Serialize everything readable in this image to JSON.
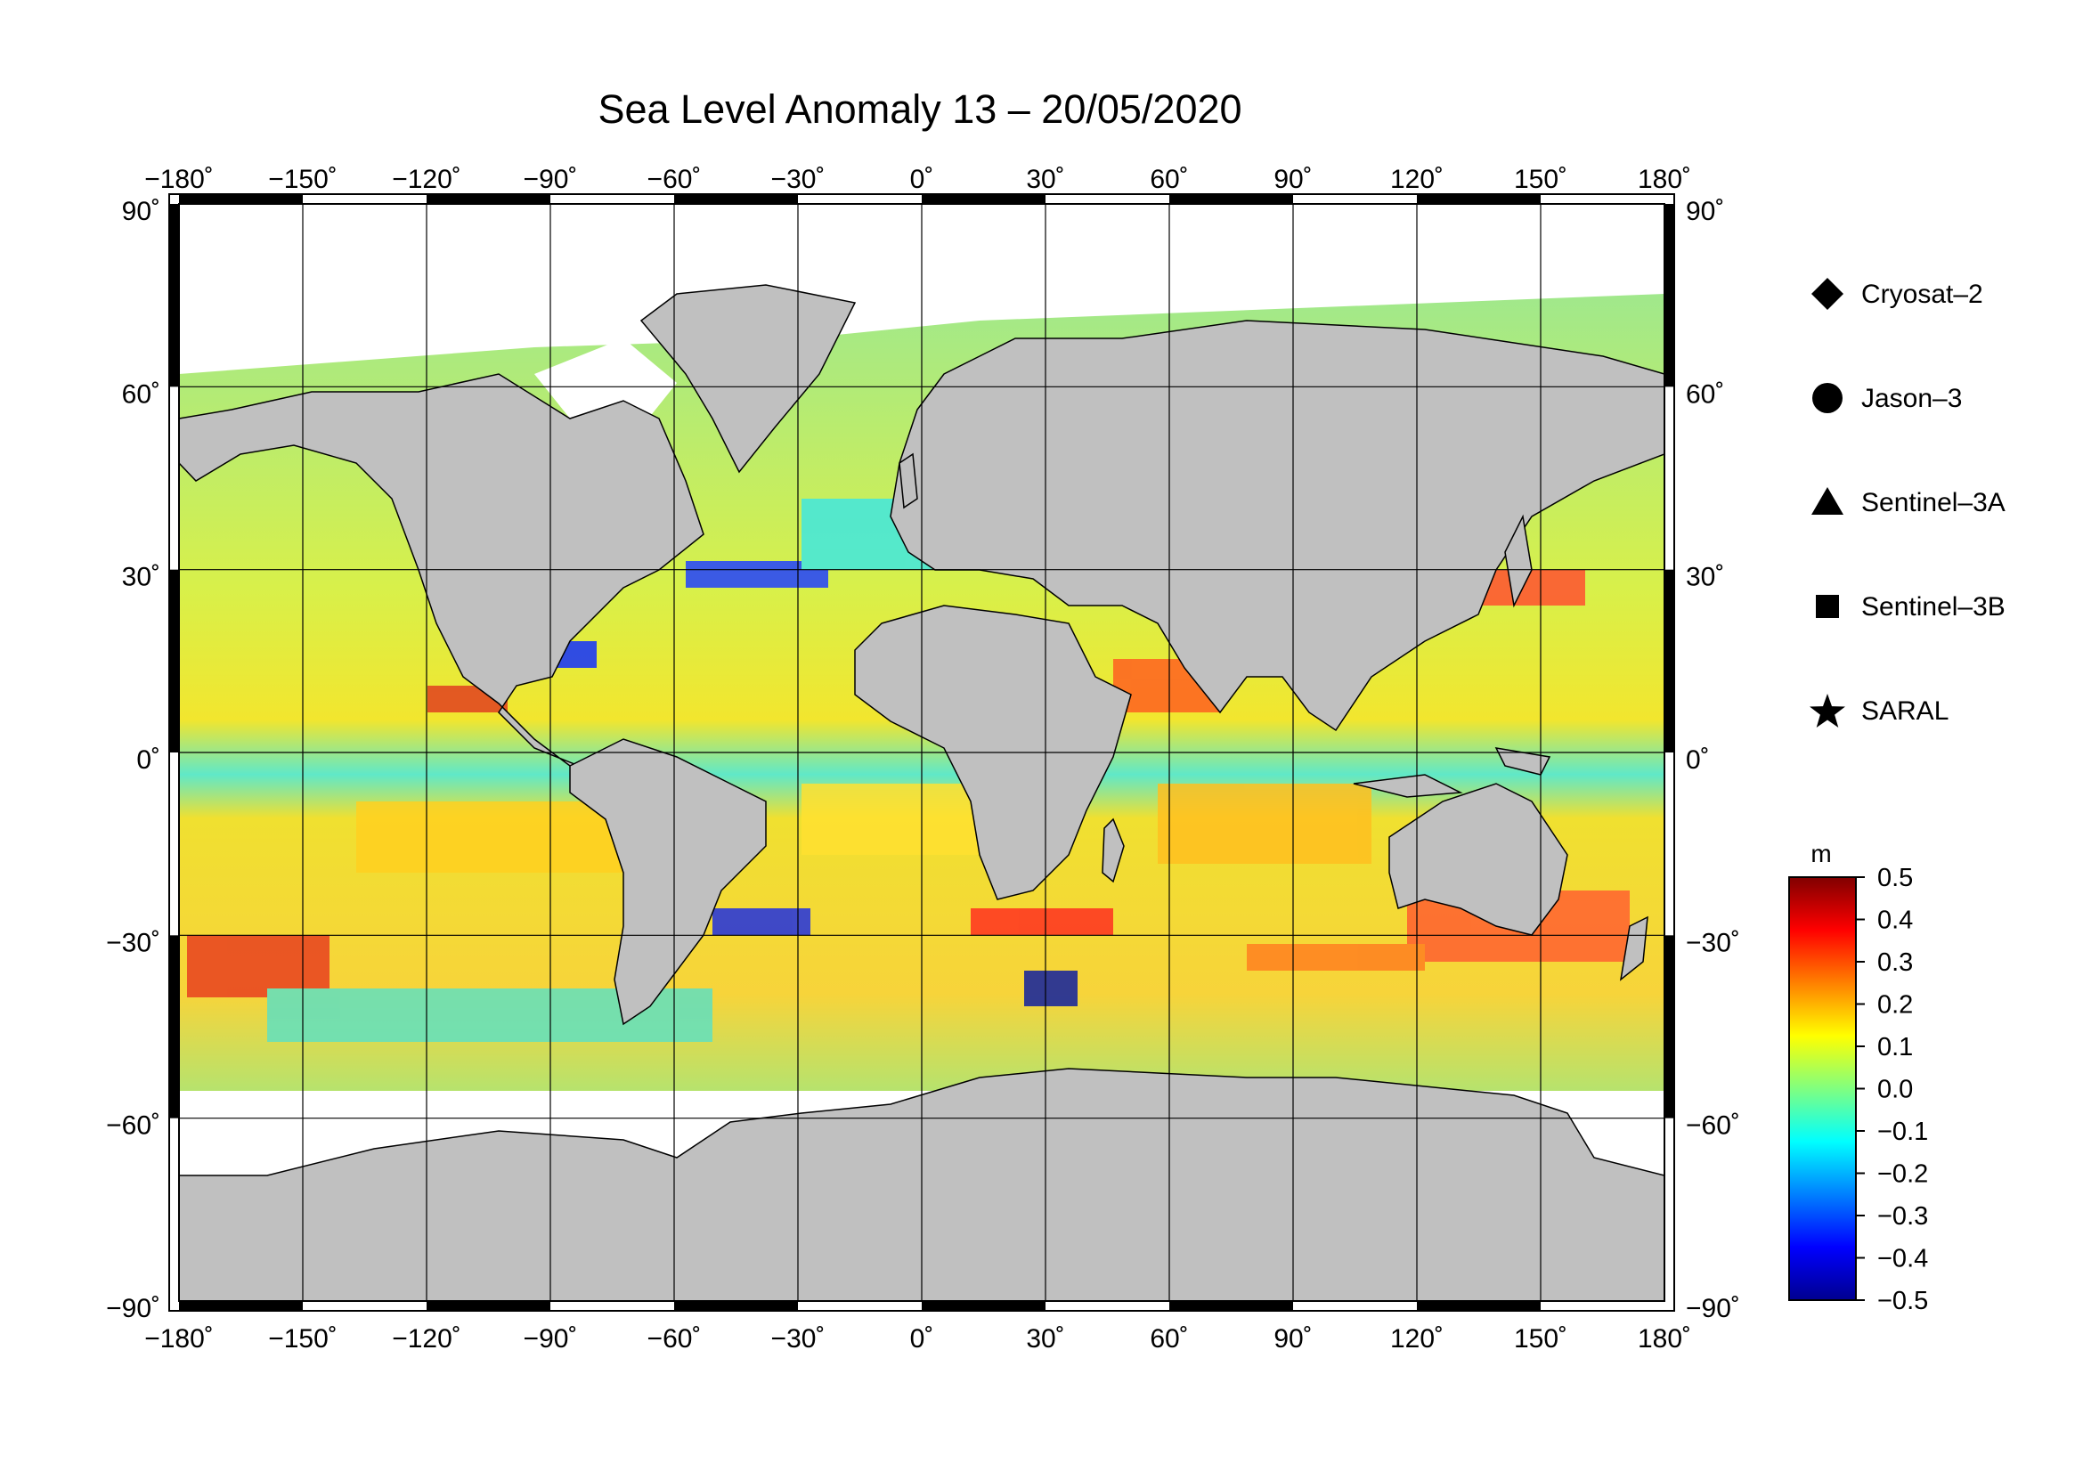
{
  "title": "Sea Level Anomaly 13 – 20/05/2020",
  "map": {
    "lon_range": [
      -180,
      180
    ],
    "lat_range": [
      -90,
      90
    ],
    "lon_ticks": [
      {
        "value": -180,
        "label": "−180˚"
      },
      {
        "value": -150,
        "label": "−150˚"
      },
      {
        "value": -120,
        "label": "−120˚"
      },
      {
        "value": -90,
        "label": "−90˚"
      },
      {
        "value": -60,
        "label": "−60˚"
      },
      {
        "value": -30,
        "label": "−30˚"
      },
      {
        "value": 0,
        "label": "0˚"
      },
      {
        "value": 30,
        "label": "30˚"
      },
      {
        "value": 60,
        "label": "60˚"
      },
      {
        "value": 90,
        "label": "90˚"
      },
      {
        "value": 120,
        "label": "120˚"
      },
      {
        "value": 150,
        "label": "150˚"
      },
      {
        "value": 180,
        "label": "180˚"
      }
    ],
    "lat_ticks": [
      {
        "value": 90,
        "label": "90˚"
      },
      {
        "value": 60,
        "label": "60˚"
      },
      {
        "value": 30,
        "label": "30˚"
      },
      {
        "value": 0,
        "label": "0˚"
      },
      {
        "value": -30,
        "label": "−30˚"
      },
      {
        "value": -60,
        "label": "−60˚"
      },
      {
        "value": -90,
        "label": "−90˚"
      }
    ],
    "grid": true,
    "land_color": "#c0c0c0",
    "ice_color": "#ffffff",
    "ocean_colormap": "jet"
  },
  "legend": {
    "satellites": [
      {
        "name": "Cryosat–2",
        "symbol": "diamond"
      },
      {
        "name": "Jason–3",
        "symbol": "circle"
      },
      {
        "name": "Sentinel–3A",
        "symbol": "triangle"
      },
      {
        "name": "Sentinel–3B",
        "symbol": "square"
      },
      {
        "name": "SARAL",
        "symbol": "star"
      }
    ]
  },
  "colorbar": {
    "unit": "m",
    "min": -0.5,
    "max": 0.5,
    "ticks": [
      {
        "value": 0.5,
        "label": "0.5"
      },
      {
        "value": 0.4,
        "label": "0.4"
      },
      {
        "value": 0.3,
        "label": "0.3"
      },
      {
        "value": 0.2,
        "label": "0.2"
      },
      {
        "value": 0.1,
        "label": "0.1"
      },
      {
        "value": 0.0,
        "label": "0.0"
      },
      {
        "value": -0.1,
        "label": "−0.1"
      },
      {
        "value": -0.2,
        "label": "−0.2"
      },
      {
        "value": -0.3,
        "label": "−0.3"
      },
      {
        "value": -0.4,
        "label": "−0.4"
      },
      {
        "value": -0.5,
        "label": "−0.5"
      }
    ],
    "colors": [
      "#00008f",
      "#0000ff",
      "#0080ff",
      "#00ffff",
      "#80ff80",
      "#ffff00",
      "#ff8000",
      "#ff0000",
      "#800000"
    ]
  }
}
